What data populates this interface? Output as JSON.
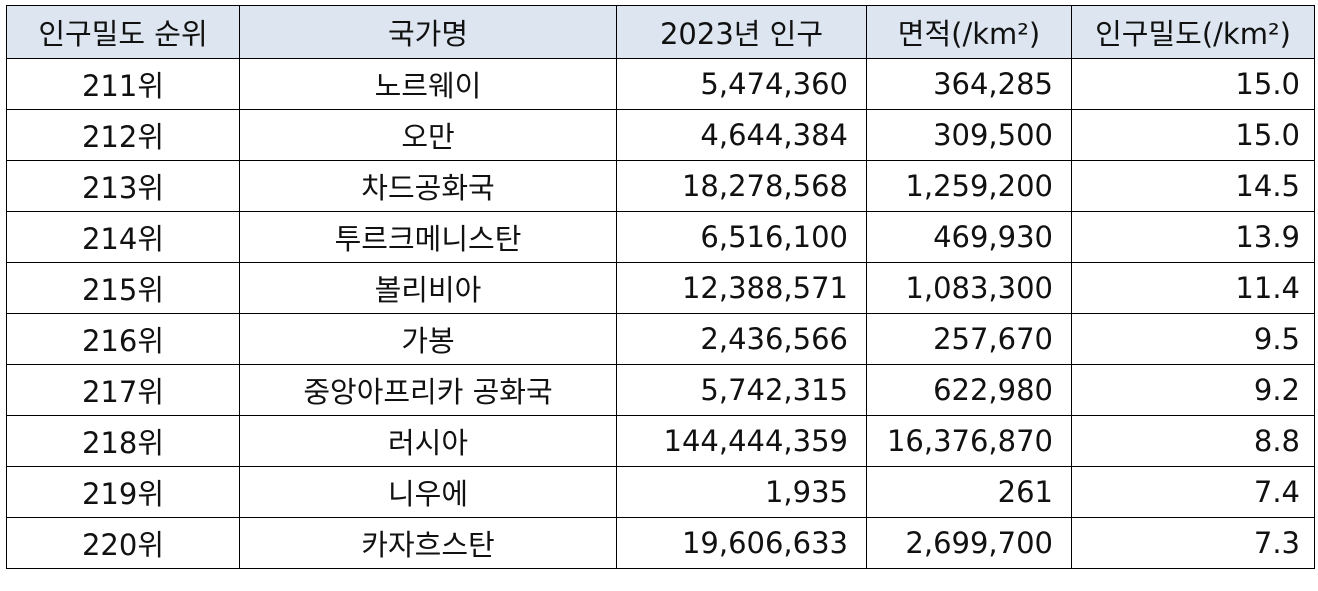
{
  "headers": [
    "인구밀도 순위",
    "국가명",
    "2023년 인구",
    "면적(/km²)",
    "인구밀도(/km²)"
  ],
  "rows": [
    {
      "rank": "211위",
      "country": "노르웨이",
      "population": "5,474,360",
      "area": "364,285",
      "density": "15.0"
    },
    {
      "rank": "212위",
      "country": "오만",
      "population": "4,644,384",
      "area": "309,500",
      "density": "15.0"
    },
    {
      "rank": "213위",
      "country": "차드공화국",
      "population": "18,278,568",
      "area": "1,259,200",
      "density": "14.5"
    },
    {
      "rank": "214위",
      "country": "투르크메니스탄",
      "population": "6,516,100",
      "area": "469,930",
      "density": "13.9"
    },
    {
      "rank": "215위",
      "country": "볼리비아",
      "population": "12,388,571",
      "area": "1,083,300",
      "density": "11.4"
    },
    {
      "rank": "216위",
      "country": "가봉",
      "population": "2,436,566",
      "area": "257,670",
      "density": "9.5"
    },
    {
      "rank": "217위",
      "country": "중앙아프리카 공화국",
      "population": "5,742,315",
      "area": "622,980",
      "density": "9.2"
    },
    {
      "rank": "218위",
      "country": "러시아",
      "population": "144,444,359",
      "area": "16,376,870",
      "density": "8.8"
    },
    {
      "rank": "219위",
      "country": "니우에",
      "population": "1,935",
      "area": "261",
      "density": "7.4"
    },
    {
      "rank": "220위",
      "country": "카자흐스탄",
      "population": "19,606,633",
      "area": "2,699,700",
      "density": "7.3"
    }
  ],
  "colors": {
    "header_background": "#dde6f0",
    "border": "#000000",
    "text": "#111111"
  }
}
